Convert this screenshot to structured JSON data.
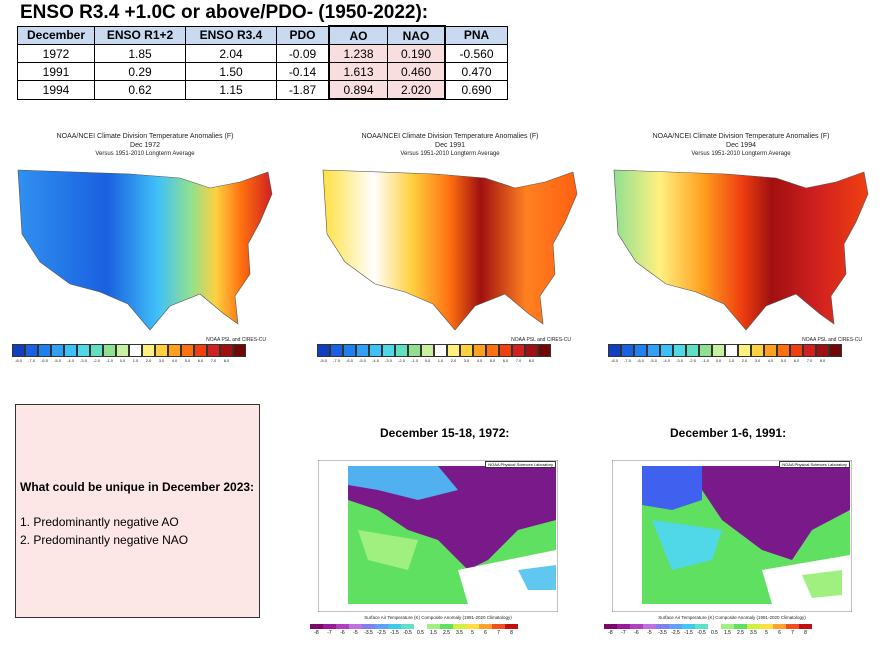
{
  "header": {
    "title": "ENSO R3.4 +1.0C or above/PDO- (1950-2022):"
  },
  "table": {
    "columns": [
      "December",
      "ENSO R1+2",
      "ENSO R3.4",
      "PDO",
      "AO",
      "NAO",
      "PNA"
    ],
    "rows": [
      [
        "1972",
        "1.85",
        "2.04",
        "-0.09",
        "1.238",
        "0.190",
        "-0.560"
      ],
      [
        "1991",
        "0.29",
        "1.50",
        "-0.14",
        "1.613",
        "0.460",
        "0.470"
      ],
      [
        "1994",
        "0.62",
        "1.15",
        "-1.87",
        "0.894",
        "2.020",
        "0.690"
      ]
    ]
  },
  "maps": [
    {
      "title": "NOAA/NCEI Climate Division Temperature Anomalies (F)",
      "date": "Dec 1972",
      "subtitle": "Versus 1951-2010 Longterm Average",
      "credit": "NOAA PSL and CIRES-CU"
    },
    {
      "title": "NOAA/NCEI Climate Division Temperature Anomalies (F)",
      "date": "Dec 1991",
      "subtitle": "Versus 1951-2010 Longterm Average",
      "credit": "NOAA PSL and CIRES-CU"
    },
    {
      "title": "NOAA/NCEI Climate Division Temperature Anomalies (F)",
      "date": "Dec 1994",
      "subtitle": "Versus 1951-2010 Longterm Average",
      "credit": "NOAA PSL and CIRES-CU"
    }
  ],
  "colorbar": {
    "ticks": [
      "-8.0",
      "-7.0",
      "-6.0",
      "-5.0",
      "-4.0",
      "-3.0",
      "-2.0",
      "-1.0",
      "0.0",
      "1.0",
      "2.0",
      "3.0",
      "4.0",
      "5.0",
      "6.0",
      "7.0",
      "8.0"
    ],
    "colors": [
      "#1040c0",
      "#1a60e0",
      "#2080f0",
      "#30a0f8",
      "#40c0f8",
      "#50d8e8",
      "#60e0c0",
      "#90e090",
      "#c8f0a0",
      "#ffffff",
      "#fff080",
      "#ffd040",
      "#ffa020",
      "#ff7010",
      "#f04010",
      "#d02020",
      "#a01010",
      "#700808"
    ]
  },
  "note": {
    "heading": "What could be unique in December 2023:",
    "items": [
      "1. Predominantly negative AO",
      "2. Predominantly negative NAO"
    ]
  },
  "composites": [
    {
      "title": "December 15-18, 1972:",
      "lab": "NOAA Physical Sciences Laboratory",
      "caption": "Surface Air Temperature (K) Composite Anomaly (1991-2020 Climatology)"
    },
    {
      "title": "December 1-6, 1991:",
      "lab": "NOAA Physical Sciences Laboratory",
      "caption": "Surface Air Temperature (K) Composite Anomaly (1991-2020 Climatology)"
    }
  ],
  "composite_bar": {
    "ticks": [
      "-8",
      "-7",
      "-6",
      "-5",
      "-3.5",
      "-2.5",
      "-1.5",
      "-0.5",
      "0.5",
      "1.5",
      "2.5",
      "3.5",
      "5",
      "6",
      "7",
      "8"
    ],
    "colors": [
      "#7a0a6a",
      "#9a1a9a",
      "#b040c0",
      "#c070e0",
      "#8080f0",
      "#60a0f8",
      "#40c8f0",
      "#60e0c8",
      "#ffffff",
      "#a0f080",
      "#60e060",
      "#d0f040",
      "#ffe040",
      "#ffa030",
      "#f05020",
      "#c01010"
    ]
  }
}
